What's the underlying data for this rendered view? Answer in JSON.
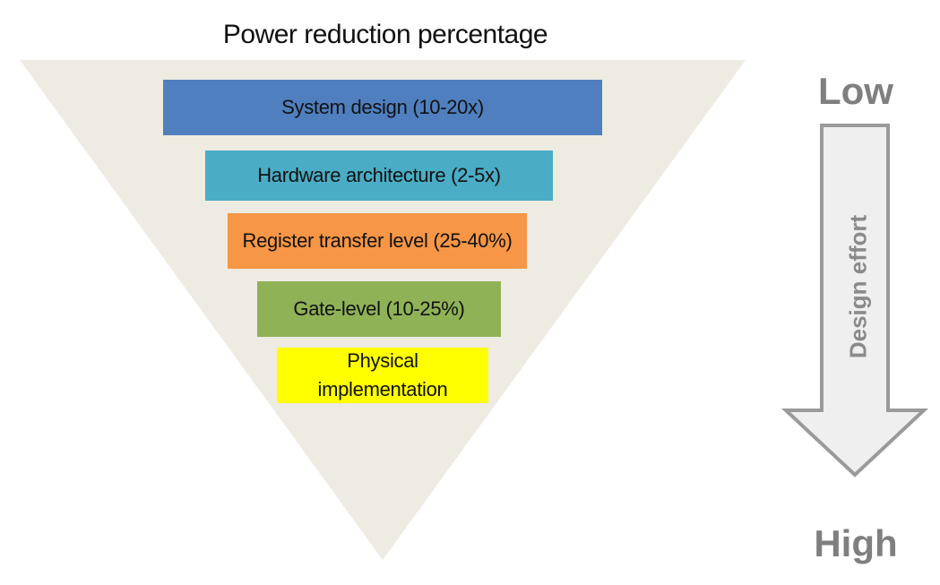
{
  "title": "Power reduction percentage",
  "colors": {
    "funnel": "#edebe2",
    "arrow_fill": "#efefef",
    "arrow_stroke": "#9a9a9a",
    "effort_text": "#7f7f7f"
  },
  "levels": [
    {
      "label": "System design (10-20x)",
      "color": "#4f7fbe"
    },
    {
      "label": "Hardware architecture (2-5x)",
      "color": "#4aacc5"
    },
    {
      "label": "Register transfer level (25-40%)",
      "color": "#f79646"
    },
    {
      "label": "Gate-level (10-25%)",
      "color": "#8fb257"
    },
    {
      "label": "Physical implementation",
      "color": "#ffff00"
    }
  ],
  "effort": {
    "low": "Low",
    "high": "High",
    "label": "Design effort"
  }
}
